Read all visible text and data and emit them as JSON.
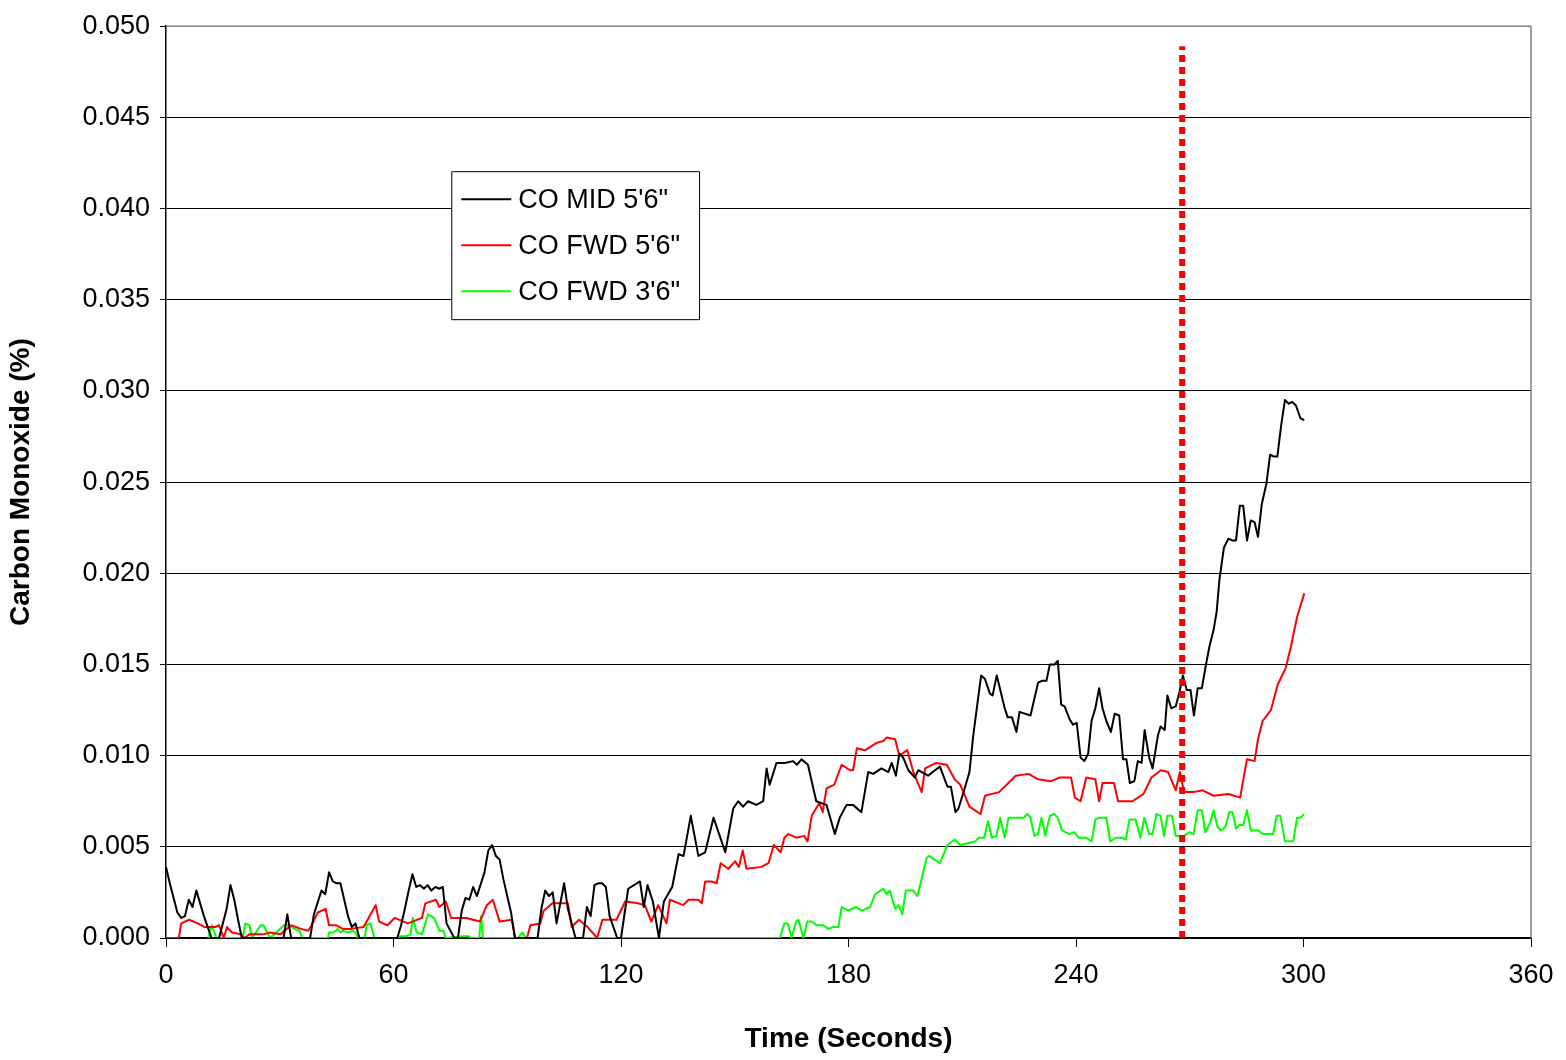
{
  "chart_data": {
    "type": "line",
    "xlabel": "Time (Seconds)",
    "ylabel": "Carbon Monoxide (%)",
    "xlim": [
      0,
      360
    ],
    "xticks": [
      0,
      60,
      120,
      180,
      240,
      300,
      360
    ],
    "ylim": [
      0,
      0.05
    ],
    "yticks": [
      {
        "value": 0,
        "label": "0.000"
      },
      {
        "value": 0.005,
        "label": "0.005"
      },
      {
        "value": 0.01,
        "label": "0.010"
      },
      {
        "value": 0.015,
        "label": "0.015"
      },
      {
        "value": 0.02,
        "label": "0.020"
      },
      {
        "value": 0.025,
        "label": "0.025"
      },
      {
        "value": 0.03,
        "label": "0.030"
      },
      {
        "value": 0.035,
        "label": "0.035"
      },
      {
        "value": 0.04,
        "label": "0.040"
      },
      {
        "value": 0.045,
        "label": "0.045"
      },
      {
        "value": 0.05,
        "label": "0.050"
      }
    ],
    "grid": "y",
    "legend": "top left",
    "marker": "none",
    "line_style": "solid",
    "ref_lines": [
      {
        "axis": "x",
        "value": 268,
        "color": "#ff0000",
        "line_style": "dotted"
      }
    ],
    "series": [
      {
        "name": "CO MID 5'6\"",
        "color": "#000000",
        "x": [
          0,
          1,
          3,
          4,
          5,
          6,
          7,
          8,
          10,
          12,
          14,
          16,
          17,
          18,
          19,
          20,
          31,
          32,
          33,
          38,
          39,
          41,
          42,
          43,
          44,
          45,
          46,
          48,
          49,
          50,
          51,
          61,
          62,
          63,
          64,
          65,
          66,
          67,
          68,
          69,
          70,
          71,
          72,
          73,
          74,
          76,
          77,
          78,
          79,
          80,
          81,
          82,
          84,
          85,
          86,
          87,
          88,
          89,
          91,
          92,
          98,
          99,
          100,
          101,
          102,
          103,
          105,
          106,
          107,
          108,
          110,
          111,
          112,
          113,
          114,
          115,
          116,
          117,
          119,
          120,
          121.9,
          125,
          126,
          127,
          128.4,
          130,
          131.3,
          133.5,
          135.2,
          136.5,
          138.4,
          140.4,
          142.2,
          144.4,
          147.5,
          149.6,
          150.9,
          152.2,
          153.5,
          155.7,
          157.5,
          158.4,
          159.2,
          161,
          163.2,
          165.4,
          166.4,
          167.6,
          169.3,
          171.5,
          174.2,
          176.4,
          177.7,
          179.5,
          181.2,
          183.4,
          185.2,
          186.5,
          188.7,
          190.5,
          191.4,
          192.5,
          193.4,
          194.4,
          195.8,
          197.5,
          198.4,
          201,
          202.8,
          204.1,
          206.1,
          207,
          208.2,
          209,
          210.5,
          211.9,
          212.9,
          214.4,
          215,
          216,
          217.3,
          218,
          219.1,
          221.2,
          222,
          223.1,
          224.3,
          225.1,
          228,
          230,
          231,
          232.2,
          233.1,
          234.3,
          235.2,
          236.1,
          237,
          238.3,
          239.2,
          240.2,
          241.2,
          242.2,
          243.2,
          244.1,
          245.1,
          246.1,
          247,
          248,
          249.2,
          250.2,
          251.4,
          252.4,
          253.3,
          254.2,
          255.4,
          256.3,
          257.3,
          258.1,
          259.3,
          260.2,
          261.6,
          262.3,
          263.4,
          264.1,
          265.1,
          266.3,
          267.3,
          268.2,
          269.2,
          270.2,
          271.1,
          272.1,
          273.2,
          274.2,
          275.2,
          276.3,
          277.1,
          277.8,
          279,
          280.2,
          281.2,
          282.2,
          283.2,
          284.1,
          285.1,
          286.1,
          287.1,
          288,
          289,
          290.2,
          291.2,
          292.2,
          293.1,
          294.1,
          295.1,
          296.1,
          297,
          298,
          299.2,
          300.2
        ],
        "values": [
          0.0039,
          0.003,
          0.0014,
          0.0011,
          0.0012,
          0.0021,
          0.0017,
          0.0026,
          0.0012,
          0,
          0,
          0.0016,
          0.0029,
          0.0021,
          0.001,
          0,
          0,
          0.0013,
          0,
          0,
          0.0013,
          0.0026,
          0.0024,
          0.0036,
          0.0031,
          0.003,
          0.003,
          0.0012,
          0.0006,
          0.0008,
          0,
          0,
          0.0007,
          0.0016,
          0.0026,
          0.0035,
          0.0028,
          0.0029,
          0.0027,
          0.0029,
          0.0026,
          0.0028,
          0.0027,
          0.0028,
          0.0008,
          0,
          0,
          0.0015,
          0.0022,
          0.0021,
          0.0028,
          0.0023,
          0.0036,
          0.0048,
          0.0051,
          0.0045,
          0.0043,
          0.0032,
          0.0014,
          0,
          0,
          0.0016,
          0.0026,
          0.0023,
          0.0025,
          0.0008,
          0.003,
          0.0016,
          0.0008,
          0,
          0,
          0.0017,
          0.0012,
          0.0029,
          0.003,
          0.003,
          0.0028,
          0.0012,
          0,
          0,
          0.0027,
          0.0031,
          0.0017,
          0.0029,
          0.002,
          0,
          0.002,
          0.0028,
          0.0046,
          0.0045,
          0.0067,
          0.0045,
          0.0047,
          0.0066,
          0.0047,
          0.0071,
          0.0075,
          0.0072,
          0.0075,
          0.0073,
          0.0075,
          0.0093,
          0.0084,
          0.0096,
          0.0096,
          0.0097,
          0.0095,
          0.0098,
          0.0095,
          0.0075,
          0.0073,
          0.0057,
          0.0066,
          0.0073,
          0.0073,
          0.0069,
          0.0091,
          0.009,
          0.0093,
          0.0091,
          0.0096,
          0.0089,
          0.0101,
          0.0099,
          0.0092,
          0.0088,
          0.0092,
          0.0089,
          0.0092,
          0.0094,
          0.0083,
          0.0083,
          0.0069,
          0.0071,
          0.0081,
          0.0091,
          0.0111,
          0.0135,
          0.0144,
          0.0142,
          0.0134,
          0.0133,
          0.0144,
          0.0126,
          0.0121,
          0.0121,
          0.0113,
          0.0124,
          0.0122,
          0.014,
          0.0141,
          0.0141,
          0.015,
          0.015,
          0.0152,
          0.0128,
          0.0127,
          0.012,
          0.0117,
          0.0118,
          0.0099,
          0.0097,
          0.0101,
          0.0119,
          0.0126,
          0.0137,
          0.0126,
          0.0119,
          0.0113,
          0.0123,
          0.0122,
          0.0098,
          0.0098,
          0.0085,
          0.0086,
          0.0097,
          0.0096,
          0.0114,
          0.0099,
          0.0093,
          0.0111,
          0.0116,
          0.0114,
          0.0133,
          0.0126,
          0.0127,
          0.0135,
          0.0144,
          0.0136,
          0.0136,
          0.0122,
          0.0137,
          0.0137,
          0.0149,
          0.016,
          0.0169,
          0.0179,
          0.0196,
          0.0214,
          0.0219,
          0.0218,
          0.0218,
          0.0237,
          0.0237,
          0.0218,
          0.0229,
          0.0228,
          0.022,
          0.0238,
          0.0249,
          0.0265,
          0.0264,
          0.0264,
          0.0281,
          0.0295,
          0.0293,
          0.0294,
          0.0292,
          0.0285,
          0.0284
        ]
      },
      {
        "name": "CO FWD 5'6\"",
        "color": "#ff0000",
        "x": [
          0,
          3.4,
          4,
          6.1,
          8.4,
          10.2,
          12.9,
          14,
          15.2,
          16.1,
          17.4,
          19.7,
          20.7,
          22,
          25.7,
          27.4,
          30.2,
          33,
          35.6,
          37.5,
          38.4,
          40,
          42.1,
          43,
          44.8,
          46.6,
          48.8,
          52.1,
          55.3,
          56.2,
          58.4,
          60.3,
          63.8,
          67.5,
          68.4,
          71.2,
          72.1,
          73.8,
          75.2,
          79.2,
          82.8,
          84.6,
          86.2,
          88,
          91.2,
          92.1,
          95.2,
          96.1,
          98.7,
          99.6,
          101.9,
          106,
          107,
          108.9,
          111.2,
          113.7,
          115.1,
          118.8,
          121.1,
          124.5,
          126.3,
          128,
          129.8,
          132,
          132.9,
          136.4,
          137.8,
          140.4,
          141.3,
          142.2,
          143.9,
          145.2,
          146.3,
          148.3,
          150.1,
          151.1,
          152.1,
          153.1,
          157.1,
          158.9,
          160.3,
          162.1,
          163.1,
          164.1,
          166.3,
          168.3,
          169.2,
          170.3,
          172.3,
          173.2,
          174.2,
          176.2,
          178.2,
          180.4,
          181.2,
          182.2,
          184.4,
          187.4,
          189.2,
          190.1,
          192.3,
          193.4,
          195.5,
          197.1,
          199.3,
          200.2,
          203.1,
          205.9,
          208,
          209.5,
          210.5,
          211.9,
          214.8,
          216,
          219.7,
          221.7,
          224.1,
          227.5,
          230,
          233.4,
          235.8,
          238.7,
          239.7,
          241.2,
          242.7,
          245.1,
          246.1,
          247,
          250,
          251.1,
          254.9,
          257.8,
          259.9,
          262.4,
          264.3,
          266.3,
          267.4,
          268.5,
          271,
          273.4,
          276.3,
          280.2,
          283.3,
          284.3,
          285.1,
          287.1,
          288,
          289.2,
          291.4,
          293.2,
          295.3,
          296.6,
          298.3,
          300.2
        ],
        "values": [
          0,
          0,
          0.0008,
          0.001,
          0.0008,
          0.0006,
          0.0006,
          0.0007,
          0,
          0.0006,
          0.0003,
          0.0002,
          0,
          0.0002,
          0.0002,
          0.0003,
          0.0002,
          0.0007,
          0.0005,
          0.0004,
          0.0007,
          0.0014,
          0.0016,
          0.0007,
          0.0007,
          0.0005,
          0.0005,
          0.0006,
          0.0018,
          0.0009,
          0.0007,
          0.0011,
          0.0008,
          0.0011,
          0.0019,
          0.0021,
          0.0017,
          0.002,
          0.0011,
          0.0011,
          0.0009,
          0.0018,
          0.0021,
          0.0009,
          0.001,
          0,
          0,
          0.0007,
          0.0008,
          0.0015,
          0.0019,
          0.0019,
          0.0006,
          0.001,
          0.0006,
          0,
          0.001,
          0.001,
          0.002,
          0.0019,
          0.0018,
          0.0009,
          0.0018,
          0.0008,
          0.0021,
          0.0018,
          0.0021,
          0.0021,
          0.0019,
          0.0031,
          0.0031,
          0.003,
          0.0041,
          0.0038,
          0.0042,
          0.0039,
          0.0048,
          0.0038,
          0.0039,
          0.0041,
          0.0051,
          0.0047,
          0.0055,
          0.0057,
          0.0055,
          0.0056,
          0.0053,
          0.0067,
          0.0074,
          0.0069,
          0.0082,
          0.0084,
          0.0095,
          0.0092,
          0.0092,
          0.0104,
          0.0103,
          0.0107,
          0.0108,
          0.011,
          0.0109,
          0.01,
          0.0103,
          0.0091,
          0.008,
          0.0093,
          0.0096,
          0.0095,
          0.0087,
          0.0084,
          0.0079,
          0.0072,
          0.0068,
          0.0078,
          0.008,
          0.0084,
          0.0089,
          0.009,
          0.0087,
          0.0086,
          0.0088,
          0.0088,
          0.0077,
          0.0075,
          0.0088,
          0.0087,
          0.0075,
          0.0085,
          0.0085,
          0.0075,
          0.0075,
          0.0079,
          0.0088,
          0.0092,
          0.0091,
          0.0081,
          0.0091,
          0.008,
          0.008,
          0.0081,
          0.0078,
          0.0079,
          0.0077,
          0.0089,
          0.0098,
          0.0097,
          0.0109,
          0.0119,
          0.0125,
          0.0139,
          0.0148,
          0.0159,
          0.0176,
          0.0189
        ]
      },
      {
        "name": "CO FWD 3'6\"",
        "color": "#00ff00",
        "x": [
          11.1,
          12.1,
          13.3,
          20.2,
          20.9,
          22,
          22.7,
          25,
          25.7,
          27.5,
          31.1,
          32.5,
          33.9,
          35.2,
          35.9,
          42.7,
          43,
          44.2,
          45.3,
          46,
          46.6,
          48,
          49.2,
          50,
          50.6,
          52.4,
          52.9,
          53.9,
          55,
          60.7,
          62,
          63.4,
          64.5,
          65.1,
          66.1,
          67.5,
          69.1,
          70.7,
          72.1,
          73.2,
          73.7,
          78.3,
          79.8,
          80.6,
          82.6,
          83.1,
          83.6,
          92.8,
          94,
          94.9,
          98,
          154,
          161.9,
          163.1,
          164,
          165,
          166.2,
          166.8,
          168.1,
          169.1,
          170.3,
          171.6,
          173.3,
          174.7,
          176,
          177.3,
          178.2,
          179.9,
          182,
          183.5,
          185.7,
          187,
          189.2,
          190.1,
          190.9,
          192.3,
          193.2,
          194.2,
          195.1,
          197.1,
          198.2,
          200.6,
          201.3,
          204.1,
          206.1,
          208,
          209.5,
          211.5,
          213.4,
          214.4,
          215.8,
          216.8,
          217.8,
          219,
          220,
          221.2,
          222.2,
          223.9,
          225.1,
          226.2,
          227.2,
          228,
          229,
          230,
          230.9,
          231.9,
          233.1,
          234.2,
          235.2,
          236.3,
          238.3,
          239.5,
          240.7,
          242.7,
          244.1,
          245.1,
          246.1,
          248,
          249,
          250.6,
          252,
          253.1,
          254.1,
          255.7,
          257,
          258,
          259.3,
          260.2,
          261.2,
          262.3,
          263.2,
          264.1,
          265.3,
          266.3,
          268.5,
          269.9,
          271,
          272.1,
          273.2,
          274.1,
          275.3,
          276.3,
          277.3,
          278.3,
          279.4,
          280.4,
          281.3,
          282.2,
          283.1,
          284.1,
          285.1,
          286.1,
          288,
          289.4,
          292,
          292.9,
          293.9,
          295.1,
          297.3,
          298.3,
          299.2,
          300.2
        ],
        "values": [
          0,
          0.0007,
          0,
          0,
          0.0008,
          0.0007,
          0,
          0.0007,
          0.0007,
          0,
          0.0007,
          0.0007,
          0.0005,
          0.0004,
          0,
          0,
          0.0003,
          0.0003,
          0.0005,
          0.0003,
          0.0004,
          0.0003,
          0.0004,
          0.0003,
          0,
          0,
          0.0007,
          0.0008,
          0,
          0,
          0.0001,
          0.0001,
          0.0002,
          0.0011,
          0.0003,
          0.0002,
          0.0013,
          0.0011,
          0.0004,
          0.0004,
          0,
          0.0001,
          0.0001,
          0,
          0,
          0.0012,
          0,
          0,
          0.0003,
          0,
          0,
          0,
          0,
          0.0008,
          0.0008,
          0,
          0.0009,
          0.001,
          0,
          0.0009,
          0.0009,
          0.0007,
          0.0007,
          0.0005,
          0.0006,
          0.0006,
          0.0017,
          0.0015,
          0.0017,
          0.0015,
          0.0017,
          0.0024,
          0.0027,
          0.0024,
          0.0026,
          0.0016,
          0.0018,
          0.0013,
          0.0026,
          0.0026,
          0.0023,
          0.0044,
          0.0045,
          0.0041,
          0.0051,
          0.0054,
          0.0051,
          0.0052,
          0.0053,
          0.0055,
          0.0055,
          0.0064,
          0.0055,
          0.0056,
          0.0066,
          0.0055,
          0.0066,
          0.0066,
          0.0066,
          0.0066,
          0.0068,
          0.0066,
          0.0056,
          0.0057,
          0.0066,
          0.0056,
          0.0067,
          0.0068,
          0.0066,
          0.0059,
          0.0057,
          0.0058,
          0.0055,
          0.0055,
          0.0053,
          0.0065,
          0.0066,
          0.0066,
          0.0053,
          0.0055,
          0.0055,
          0.0054,
          0.0065,
          0.0065,
          0.0055,
          0.0066,
          0.0057,
          0.0057,
          0.0068,
          0.0067,
          0.0056,
          0.0067,
          0.0067,
          0.0056,
          0.0056,
          0.0058,
          0.0057,
          0.007,
          0.007,
          0.0058,
          0.0063,
          0.007,
          0.0061,
          0.0059,
          0.0061,
          0.0069,
          0.0069,
          0.006,
          0.0062,
          0.0062,
          0.007,
          0.0059,
          0.0059,
          0.0057,
          0.0057,
          0.0067,
          0.0067,
          0.0053,
          0.0053,
          0.0066,
          0.0066,
          0.0068
        ]
      }
    ]
  }
}
